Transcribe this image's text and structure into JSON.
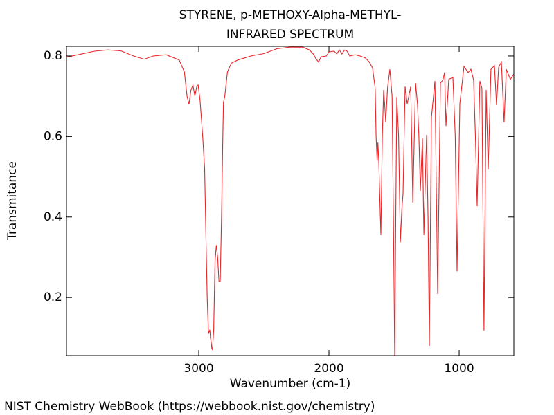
{
  "chart_data": {
    "type": "line",
    "title": "STYRENE, p-METHOXY-Alpha-METHYL-",
    "subtitle": "INFRARED SPECTRUM",
    "x_label": "Wavenumber (cm-1)",
    "y_label": "Transmitance",
    "source": "NIST Chemistry WebBook (https://webbook.nist.gov/chemistry)",
    "color": "#e8262a",
    "xlim": [
      4016,
      580
    ],
    "ylim": [
      0.056,
      0.824
    ],
    "xticks": [
      3000,
      2000,
      1000
    ],
    "yticks": [
      0.2,
      0.4,
      0.6,
      0.8
    ],
    "x": [
      4016,
      3900,
      3800,
      3700,
      3600,
      3500,
      3420,
      3350,
      3250,
      3150,
      3110,
      3090,
      3075,
      3060,
      3045,
      3030,
      3015,
      3005,
      2990,
      2970,
      2955,
      2945,
      2935,
      2930,
      2925,
      2915,
      2910,
      2905,
      2900,
      2895,
      2885,
      2875,
      2865,
      2855,
      2845,
      2835,
      2825,
      2815,
      2810,
      2800,
      2780,
      2750,
      2700,
      2600,
      2500,
      2400,
      2300,
      2200,
      2150,
      2120,
      2100,
      2080,
      2060,
      2020,
      2000,
      1960,
      1940,
      1920,
      1900,
      1880,
      1860,
      1840,
      1800,
      1760,
      1720,
      1690,
      1665,
      1645,
      1638,
      1630,
      1624,
      1617,
      1610,
      1601,
      1590,
      1580,
      1570,
      1564,
      1550,
      1532,
      1515,
      1505,
      1495,
      1487,
      1479,
      1465,
      1452,
      1440,
      1431,
      1415,
      1399,
      1372,
      1356,
      1335,
      1320,
      1309,
      1298,
      1282,
      1271,
      1250,
      1239,
      1229,
      1213,
      1186,
      1165,
      1144,
      1125,
      1112,
      1101,
      1080,
      1048,
      1030,
      1016,
      995,
      963,
      931,
      910,
      889,
      875,
      862,
      841,
      825,
      809,
      793,
      777,
      756,
      729,
      713,
      697,
      676,
      655,
      638,
      607,
      580
    ],
    "values": [
      0.797,
      0.805,
      0.812,
      0.815,
      0.813,
      0.8,
      0.792,
      0.8,
      0.803,
      0.79,
      0.76,
      0.7,
      0.68,
      0.715,
      0.728,
      0.7,
      0.725,
      0.728,
      0.69,
      0.6,
      0.52,
      0.35,
      0.2,
      0.15,
      0.11,
      0.12,
      0.1,
      0.09,
      0.075,
      0.07,
      0.12,
      0.29,
      0.33,
      0.3,
      0.24,
      0.24,
      0.4,
      0.6,
      0.685,
      0.7,
      0.76,
      0.782,
      0.79,
      0.8,
      0.806,
      0.818,
      0.822,
      0.822,
      0.815,
      0.805,
      0.793,
      0.785,
      0.798,
      0.8,
      0.81,
      0.812,
      0.805,
      0.815,
      0.805,
      0.815,
      0.812,
      0.8,
      0.803,
      0.8,
      0.795,
      0.785,
      0.77,
      0.72,
      0.6,
      0.54,
      0.585,
      0.54,
      0.45,
      0.355,
      0.6,
      0.716,
      0.67,
      0.635,
      0.72,
      0.767,
      0.7,
      0.4,
      0.05,
      0.4,
      0.698,
      0.6,
      0.337,
      0.42,
      0.458,
      0.724,
      0.681,
      0.724,
      0.436,
      0.733,
      0.68,
      0.6,
      0.465,
      0.595,
      0.355,
      0.604,
      0.4,
      0.08,
      0.647,
      0.738,
      0.209,
      0.733,
      0.74,
      0.759,
      0.626,
      0.742,
      0.747,
      0.6,
      0.265,
      0.681,
      0.774,
      0.759,
      0.767,
      0.74,
      0.6,
      0.427,
      0.738,
      0.72,
      0.118,
      0.716,
      0.518,
      0.767,
      0.776,
      0.678,
      0.772,
      0.785,
      0.635,
      0.767,
      0.742,
      0.755
    ]
  }
}
